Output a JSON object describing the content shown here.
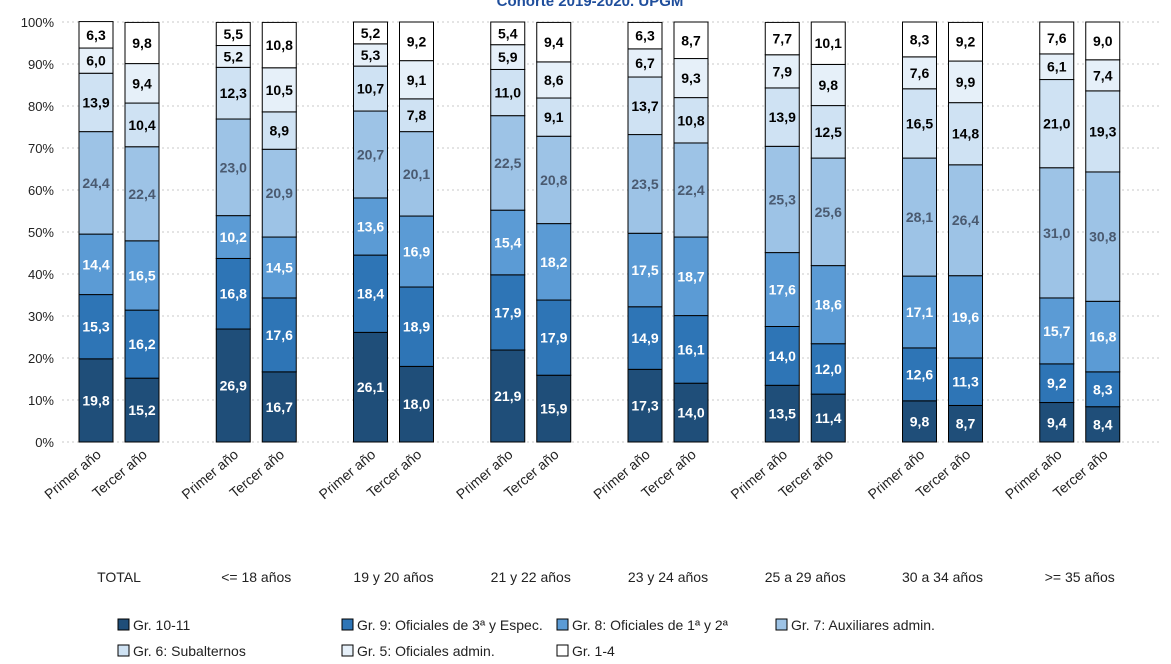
{
  "chart_data": {
    "type": "bar",
    "stacked": true,
    "title": "Cohorte 2019-2020. UPGM",
    "ylim": [
      0,
      100
    ],
    "yticks": [
      "0%",
      "10%",
      "20%",
      "30%",
      "40%",
      "50%",
      "60%",
      "70%",
      "80%",
      "90%",
      "100%"
    ],
    "grid": true,
    "legend_position": "bottom",
    "bar_labels": [
      "Primer año",
      "Tercer año"
    ],
    "groups": [
      "TOTAL",
      "<= 18 años",
      "19 y 20 años",
      "21 y 22 años",
      "23 y 24 años",
      "25 a 29 años",
      "30 a 34 años",
      ">= 35 años"
    ],
    "series": [
      {
        "name": "Gr. 10-11",
        "color": "#1f4e79",
        "label_color": "#ffffff",
        "values": [
          [
            19.8,
            15.2
          ],
          [
            26.9,
            16.7
          ],
          [
            26.1,
            18.0
          ],
          [
            21.9,
            15.9
          ],
          [
            17.3,
            14.0
          ],
          [
            13.5,
            11.4
          ],
          [
            9.8,
            8.7
          ],
          [
            9.4,
            8.4
          ]
        ]
      },
      {
        "name": "Gr. 9: Oficiales de 3ª y Espec.",
        "color": "#2e75b6",
        "label_color": "#ffffff",
        "values": [
          [
            15.3,
            16.2
          ],
          [
            16.8,
            17.6
          ],
          [
            18.4,
            18.9
          ],
          [
            17.9,
            17.9
          ],
          [
            14.9,
            16.1
          ],
          [
            14.0,
            12.0
          ],
          [
            12.6,
            11.3
          ],
          [
            9.2,
            8.3
          ]
        ]
      },
      {
        "name": "Gr. 8: Oficiales de 1ª y 2ª",
        "color": "#5b9bd5",
        "label_color": "#ffffff",
        "values": [
          [
            14.4,
            16.5
          ],
          [
            10.2,
            14.5
          ],
          [
            13.6,
            16.9
          ],
          [
            15.4,
            18.2
          ],
          [
            17.5,
            18.7
          ],
          [
            17.6,
            18.6
          ],
          [
            17.1,
            19.6
          ],
          [
            15.7,
            16.8
          ]
        ]
      },
      {
        "name": "Gr. 7: Auxiliares admin.",
        "color": "#9dc3e6",
        "label_color": "#4a5a70",
        "values": [
          [
            24.4,
            22.4
          ],
          [
            23.0,
            20.9
          ],
          [
            20.7,
            20.1
          ],
          [
            22.5,
            20.8
          ],
          [
            23.5,
            22.4
          ],
          [
            25.3,
            25.6
          ],
          [
            28.1,
            26.4
          ],
          [
            31.0,
            30.8
          ]
        ]
      },
      {
        "name": "Gr. 6: Subalternos",
        "color": "#cfe2f3",
        "label_color": "#000000",
        "values": [
          [
            13.9,
            10.4
          ],
          [
            12.3,
            8.9
          ],
          [
            10.7,
            7.8
          ],
          [
            11.0,
            9.1
          ],
          [
            13.7,
            10.8
          ],
          [
            13.9,
            12.5
          ],
          [
            16.5,
            14.8
          ],
          [
            21.0,
            19.3
          ]
        ]
      },
      {
        "name": "Gr. 5: Oficiales admin.",
        "color": "#e6f0f9",
        "label_color": "#000000",
        "values": [
          [
            6.0,
            9.4
          ],
          [
            5.2,
            10.5
          ],
          [
            5.3,
            9.1
          ],
          [
            5.9,
            8.6
          ],
          [
            6.7,
            9.3
          ],
          [
            7.9,
            9.8
          ],
          [
            7.6,
            9.9
          ],
          [
            6.1,
            7.4
          ]
        ]
      },
      {
        "name": "Gr. 1-4",
        "color": "#ffffff",
        "label_color": "#000000",
        "values": [
          [
            6.3,
            9.8
          ],
          [
            5.5,
            10.8
          ],
          [
            5.2,
            9.2
          ],
          [
            5.4,
            9.4
          ],
          [
            6.3,
            8.7
          ],
          [
            7.7,
            10.1
          ],
          [
            8.3,
            9.2
          ],
          [
            7.6,
            9.0
          ]
        ]
      }
    ]
  }
}
